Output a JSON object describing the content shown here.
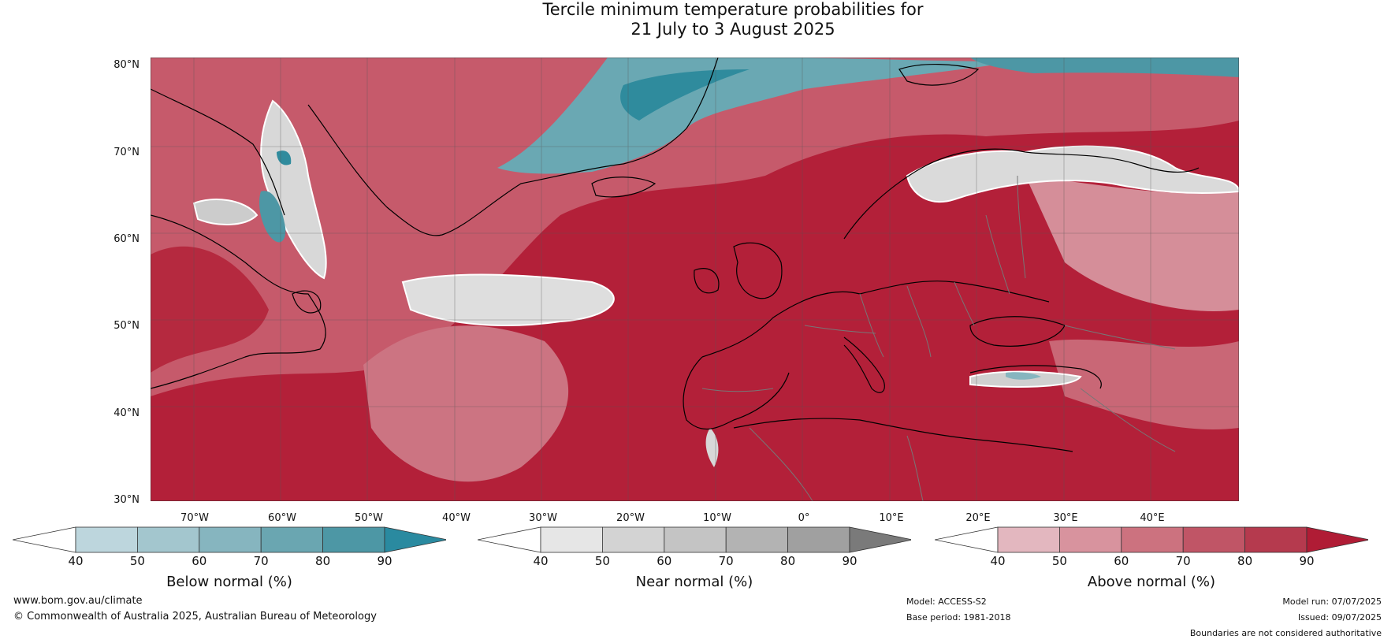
{
  "title_line1": "Tercile minimum temperature probabilities for",
  "title_line2": "21 July to 3 August 2025",
  "lat_labels": [
    "80°N",
    "70°N",
    "60°N",
    "50°N",
    "40°N",
    "30°N"
  ],
  "lon_labels": [
    "70°W",
    "60°W",
    "50°W",
    "40°W",
    "30°W",
    "20°W",
    "10°W",
    "0°",
    "10°E",
    "20°E",
    "30°E",
    "40°E"
  ],
  "colorbars": {
    "below": {
      "title": "Below normal (%)",
      "ticks": [
        "40",
        "50",
        "60",
        "70",
        "80",
        "90"
      ],
      "colors": [
        "#bdd6dd",
        "#a3c6ce",
        "#86b5bf",
        "#6aa6b1",
        "#4d97a5",
        "#2f8b9d"
      ],
      "under": "#ffffff"
    },
    "near": {
      "title": "Near normal (%)",
      "ticks": [
        "40",
        "50",
        "60",
        "70",
        "80",
        "90"
      ],
      "colors": [
        "#e6e6e6",
        "#d3d3d3",
        "#c4c4c4",
        "#b3b3b3",
        "#a0a0a0",
        "#858585"
      ],
      "under": "#ffffff"
    },
    "above": {
      "title": "Above normal (%)",
      "ticks": [
        "40",
        "50",
        "60",
        "70",
        "80",
        "90"
      ],
      "colors": [
        "#e3b7bf",
        "#d8939e",
        "#cc727f",
        "#c05566",
        "#b53a4e",
        "#b01c35"
      ],
      "under": "#ffffff"
    }
  },
  "footer": {
    "website": "www.bom.gov.au/climate",
    "copyright": "© Commonwealth of Australia 2025, Australian Bureau of Meteorology",
    "model": "Model: ACCESS-S2",
    "base_period": "Base period: 1981-2018",
    "model_run": "Model run: 07/07/2025",
    "issued": "Issued: 09/07/2025",
    "disclaimer": "Boundaries are not considered authoritative"
  }
}
